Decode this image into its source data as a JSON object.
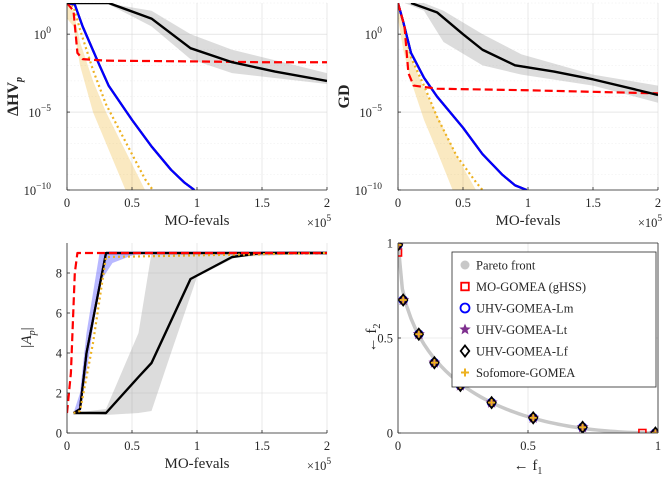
{
  "chart_data": [
    {
      "id": "hv",
      "type": "line",
      "ylabel": "ΔHV",
      "ylabel_sub": "p",
      "xlabel": "MO-fevals",
      "x_multiplier": "×10",
      "x_multiplier_exp": "5",
      "yscale": "log",
      "xlim": [
        0,
        2
      ],
      "ylim_exp": [
        -10,
        2
      ],
      "xticks": [
        "0",
        "0.5",
        "1",
        "1.5",
        "2"
      ],
      "yticks": [
        {
          "base": "10",
          "exp": "0",
          "v": 0
        },
        {
          "base": "10",
          "exp": "−5",
          "v": -5
        },
        {
          "base": "10",
          "exp": "−10",
          "v": -10
        }
      ],
      "series": [
        {
          "name": "Sofomore-GOMEA",
          "color": "#EDB120",
          "dash": "dot",
          "band": [
            [
              0,
              2
            ],
            [
              0.05,
              1.5
            ],
            [
              0.1,
              -0.5
            ],
            [
              0.2,
              -3
            ],
            [
              0.3,
              -5
            ],
            [
              0.45,
              -7.5
            ],
            [
              0.6,
              -10
            ]
          ],
          "band_low": [
            [
              0,
              1
            ],
            [
              0.05,
              0.5
            ],
            [
              0.1,
              -2
            ],
            [
              0.2,
              -5
            ],
            [
              0.3,
              -7
            ],
            [
              0.45,
              -10
            ]
          ],
          "x": [
            0,
            0.05,
            0.1,
            0.2,
            0.3,
            0.45,
            0.6,
            0.66
          ],
          "y": [
            2,
            1.8,
            0.3,
            -2.3,
            -4.5,
            -6.9,
            -9.3,
            -10
          ]
        },
        {
          "name": "UHV-GOMEA-Lf",
          "color": "#000000",
          "dash": "solid",
          "x": [
            0,
            0.06,
            0.12,
            0.25,
            0.32,
            0.5,
            0.65,
            0.8,
            0.9,
            0.98
          ],
          "y": [
            2,
            1.9,
            0.5,
            -2,
            -3.3,
            -5.5,
            -7.2,
            -8.7,
            -9.5,
            -10
          ]
        },
        {
          "name": "UHV-GOMEA-Lt",
          "color": "#7E2F8E",
          "dash": "solid",
          "x": [
            0,
            0.06,
            0.12,
            0.25,
            0.32,
            0.5,
            0.65,
            0.8,
            0.9,
            0.98
          ],
          "y": [
            2,
            1.9,
            0.5,
            -2,
            -3.3,
            -5.5,
            -7.2,
            -8.7,
            -9.5,
            -10
          ]
        },
        {
          "name": "UHV-GOMEA-Lm",
          "color": "#0000ff",
          "dash": "solid",
          "x": [
            0,
            0.06,
            0.12,
            0.25,
            0.32,
            0.5,
            0.65,
            0.8,
            0.9,
            0.98
          ],
          "y": [
            2,
            1.9,
            0.5,
            -2,
            -3.3,
            -5.5,
            -7.2,
            -8.7,
            -9.5,
            -10
          ]
        },
        {
          "name": "MO-GOMEA (gHSS)",
          "color": "#ff0000",
          "dash": "dash",
          "x": [
            0,
            0.05,
            0.08,
            0.12,
            0.3,
            1,
            1.5,
            2
          ],
          "y": [
            2,
            1.5,
            -1.2,
            -1.6,
            -1.7,
            -1.75,
            -1.8,
            -1.8
          ]
        },
        {
          "name": "Pareto front",
          "color": "#000000",
          "dash": "solid",
          "thick": true,
          "band": [
            [
              0,
              2
            ],
            [
              0.3,
              2
            ],
            [
              0.65,
              1.5
            ],
            [
              0.95,
              0
            ],
            [
              1.27,
              -1
            ],
            [
              2,
              -2.5
            ]
          ],
          "band_low": [
            [
              0,
              2
            ],
            [
              0.3,
              2
            ],
            [
              0.65,
              0.5
            ],
            [
              0.95,
              -1.6
            ],
            [
              1.27,
              -2.5
            ],
            [
              2,
              -3.2
            ]
          ],
          "x": [
            0,
            0.32,
            0.65,
            0.95,
            1.27,
            1.6,
            2
          ],
          "y": [
            2,
            2,
            1,
            -0.9,
            -1.8,
            -2.4,
            -3
          ]
        }
      ]
    },
    {
      "id": "gd",
      "type": "line",
      "ylabel": "GD",
      "xlabel": "MO-fevals",
      "x_multiplier": "×10",
      "x_multiplier_exp": "5",
      "yscale": "log",
      "xlim": [
        0,
        2
      ],
      "ylim_exp": [
        -10,
        2
      ],
      "xticks": [
        "0",
        "0.5",
        "1",
        "1.5",
        "2"
      ],
      "yticks": [
        {
          "base": "10",
          "exp": "0",
          "v": 0
        },
        {
          "base": "10",
          "exp": "−5",
          "v": -5
        },
        {
          "base": "10",
          "exp": "−10",
          "v": -10
        }
      ],
      "series": [
        {
          "name": "Sofomore-GOMEA",
          "color": "#EDB120",
          "dash": "dot",
          "band": [
            [
              0,
              2
            ],
            [
              0.04,
              0.5
            ],
            [
              0.1,
              -1.5
            ],
            [
              0.2,
              -3.5
            ],
            [
              0.3,
              -5.2
            ],
            [
              0.45,
              -7.8
            ],
            [
              0.6,
              -10
            ]
          ],
          "band_low": [
            [
              0,
              1
            ],
            [
              0.04,
              -1
            ],
            [
              0.1,
              -3
            ],
            [
              0.2,
              -5.5
            ],
            [
              0.3,
              -7.5
            ],
            [
              0.42,
              -10
            ]
          ],
          "x": [
            0,
            0.04,
            0.1,
            0.2,
            0.3,
            0.45,
            0.6,
            0.65
          ],
          "y": [
            2,
            0.8,
            -1.5,
            -3.3,
            -5.3,
            -7.8,
            -9.5,
            -10
          ]
        },
        {
          "name": "UHV-GOMEA-Lf",
          "color": "#000000",
          "dash": "solid",
          "x": [
            0,
            0.04,
            0.1,
            0.2,
            0.3,
            0.5,
            0.65,
            0.8,
            0.9,
            0.99
          ],
          "y": [
            2,
            0.8,
            -1.2,
            -2.8,
            -4,
            -6,
            -7.7,
            -9,
            -9.7,
            -10
          ]
        },
        {
          "name": "UHV-GOMEA-Lt",
          "color": "#7E2F8E",
          "dash": "solid",
          "x": [
            0,
            0.04,
            0.1,
            0.2,
            0.3,
            0.5,
            0.65,
            0.8,
            0.9,
            0.99
          ],
          "y": [
            2,
            0.8,
            -1.2,
            -2.8,
            -4,
            -6,
            -7.7,
            -9,
            -9.7,
            -10
          ]
        },
        {
          "name": "UHV-GOMEA-Lm",
          "color": "#0000ff",
          "dash": "solid",
          "x": [
            0,
            0.04,
            0.1,
            0.2,
            0.3,
            0.5,
            0.65,
            0.8,
            0.9,
            0.99
          ],
          "y": [
            2,
            0.8,
            -1.2,
            -2.8,
            -4,
            -6,
            -7.7,
            -9,
            -9.7,
            -10
          ]
        },
        {
          "name": "MO-GOMEA (gHSS)",
          "color": "#ff0000",
          "dash": "dash",
          "x": [
            0,
            0.05,
            0.08,
            0.12,
            0.3,
            1,
            1.5,
            2
          ],
          "y": [
            2,
            0.5,
            -2.5,
            -3.3,
            -3.5,
            -3.6,
            -3.7,
            -3.8
          ]
        },
        {
          "name": "Pareto front",
          "color": "#000000",
          "dash": "solid",
          "thick": true,
          "band": [
            [
              0.05,
              2
            ],
            [
              0.2,
              2
            ],
            [
              0.35,
              1.5
            ],
            [
              0.65,
              0
            ],
            [
              0.95,
              -1.3
            ],
            [
              1.5,
              -2.6
            ],
            [
              2,
              -3.3
            ]
          ],
          "band_low": [
            [
              0.05,
              2
            ],
            [
              0.2,
              1.5
            ],
            [
              0.35,
              -0.5
            ],
            [
              0.65,
              -2
            ],
            [
              0.95,
              -2.6
            ],
            [
              1.5,
              -3.3
            ],
            [
              2,
              -4.4
            ]
          ],
          "x": [
            0.1,
            0.3,
            0.5,
            0.65,
            0.9,
            1.2,
            1.5,
            2
          ],
          "y": [
            2,
            1.4,
            0,
            -1,
            -2,
            -2.4,
            -2.9,
            -3.9
          ]
        }
      ]
    },
    {
      "id": "ap",
      "type": "line",
      "ylabel": "|A",
      "ylabel_sub": "p",
      "ylabel_end": "|",
      "xlabel": "MO-fevals",
      "x_multiplier": "×10",
      "x_multiplier_exp": "5",
      "yscale": "linear",
      "xlim": [
        0,
        2
      ],
      "ylim": [
        0,
        9.5
      ],
      "xticks": [
        "0",
        "0.5",
        "1",
        "1.5",
        "2"
      ],
      "yticks": [
        {
          "label": "0",
          "v": 0
        },
        {
          "label": "2",
          "v": 2
        },
        {
          "label": "4",
          "v": 4
        },
        {
          "label": "6",
          "v": 6
        },
        {
          "label": "8",
          "v": 8
        }
      ],
      "series": [
        {
          "name": "Pareto front",
          "color": "#000000",
          "dash": "solid",
          "thick": true,
          "band": [
            [
              0.05,
              1
            ],
            [
              0.3,
              1.2
            ],
            [
              0.55,
              5
            ],
            [
              0.65,
              9
            ],
            [
              0.95,
              9
            ],
            [
              1.3,
              9
            ],
            [
              2,
              9
            ]
          ],
          "band_low": [
            [
              0.05,
              1
            ],
            [
              0.3,
              0.9
            ],
            [
              0.55,
              1
            ],
            [
              0.65,
              1.1
            ],
            [
              0.8,
              4
            ],
            [
              1.0,
              7.8
            ],
            [
              1.3,
              8.8
            ],
            [
              2,
              9
            ]
          ],
          "x": [
            0.05,
            0.3,
            0.55,
            0.65,
            0.95,
            1.27,
            1.5,
            2
          ],
          "y": [
            1,
            1,
            2.8,
            3.5,
            7.7,
            8.8,
            9,
            9
          ]
        },
        {
          "name": "UHV-GOMEA-Lm",
          "color": "#0000ff",
          "dash": "solid",
          "band": [
            [
              0.05,
              1
            ],
            [
              0.1,
              2
            ],
            [
              0.15,
              5
            ],
            [
              0.25,
              9
            ],
            [
              0.45,
              9
            ],
            [
              0.55,
              9
            ]
          ],
          "band_low": [
            [
              0.05,
              1
            ],
            [
              0.1,
              1
            ],
            [
              0.15,
              3
            ],
            [
              0.25,
              7.5
            ],
            [
              0.35,
              8.5
            ],
            [
              0.55,
              9
            ]
          ],
          "x": [
            0.05,
            0.1,
            0.15,
            0.3,
            2
          ],
          "y": [
            1,
            1.2,
            4,
            9,
            9
          ]
        },
        {
          "name": "UHV-GOMEA-Lt",
          "color": "#7E2F8E",
          "dash": "solid",
          "x": [
            0.05,
            0.1,
            0.15,
            0.3,
            2
          ],
          "y": [
            1,
            1.2,
            4,
            9,
            9
          ]
        },
        {
          "name": "UHV-GOMEA-Lf",
          "color": "#000000",
          "dash": "solid",
          "x": [
            0.05,
            0.1,
            0.15,
            0.3,
            2
          ],
          "y": [
            1,
            1.2,
            4,
            9,
            9
          ]
        },
        {
          "name": "Sofomore-GOMEA",
          "color": "#EDB120",
          "dash": "dot",
          "x": [
            0.05,
            0.1,
            0.2,
            0.3,
            2
          ],
          "y": [
            1,
            1.1,
            4.5,
            8.8,
            9
          ]
        },
        {
          "name": "MO-GOMEA (gHSS)",
          "color": "#ff0000",
          "dash": "dash",
          "x": [
            0,
            0.03,
            0.06,
            0.08,
            2
          ],
          "y": [
            1,
            3,
            8,
            9,
            9
          ]
        }
      ]
    },
    {
      "id": "front",
      "type": "scatter",
      "xlabel": "← f",
      "xlabel_sub": "1",
      "ylabel": "← f",
      "ylabel_sub": "2",
      "xlim": [
        0,
        1
      ],
      "ylim": [
        0,
        1
      ],
      "xticks": [
        {
          "label": "0",
          "v": 0
        },
        {
          "label": "0.5",
          "v": 0.5
        },
        {
          "label": "1",
          "v": 1
        }
      ],
      "yticks": [
        {
          "label": "0",
          "v": 0
        },
        {
          "label": "0.5",
          "v": 0.5
        },
        {
          "label": "1",
          "v": 1
        }
      ],
      "pareto_front": {
        "name": "Pareto front",
        "color": "#c8c8c8"
      },
      "points": {
        "MO-GOMEA (gHSS)": [
          [
            0,
            0.95
          ],
          [
            0.94,
            0
          ]
        ],
        "common": [
          [
            0,
            0.99
          ],
          [
            0.02,
            0.7
          ],
          [
            0.08,
            0.52
          ],
          [
            0.14,
            0.37
          ],
          [
            0.24,
            0.25
          ],
          [
            0.36,
            0.16
          ],
          [
            0.52,
            0.08
          ],
          [
            0.71,
            0.03
          ],
          [
            0.99,
            0
          ]
        ]
      }
    }
  ],
  "legend": [
    {
      "name": "Pareto front",
      "marker": "circle-filled",
      "color": "#c8c8c8"
    },
    {
      "name": "MO-GOMEA (gHSS)",
      "marker": "square",
      "color": "#ff0000"
    },
    {
      "name": "UHV-GOMEA-Lm",
      "marker": "circle",
      "color": "#0000ff"
    },
    {
      "name": "UHV-GOMEA-Lt",
      "marker": "star",
      "color": "#7E2F8E"
    },
    {
      "name": "UHV-GOMEA-Lf",
      "marker": "diamond",
      "color": "#000000"
    },
    {
      "name": "Sofomore-GOMEA",
      "marker": "plus",
      "color": "#EDB120"
    }
  ]
}
